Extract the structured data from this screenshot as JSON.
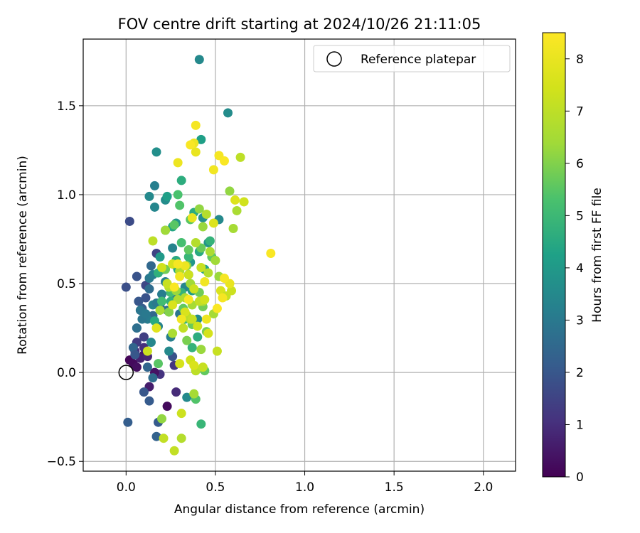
{
  "chart_data": {
    "type": "scatter",
    "title": "FOV centre drift starting at 2024/10/26 21:11:05",
    "xlabel": "Angular distance from reference (arcmin)",
    "ylabel": "Rotation from reference (arcmin)",
    "xlim": [
      -0.24,
      2.18
    ],
    "ylim": [
      -0.555,
      1.875
    ],
    "xticks": [
      0.0,
      0.5,
      1.0,
      1.5,
      2.0
    ],
    "xtick_labels": [
      "0.0",
      "0.5",
      "1.0",
      "1.5",
      "2.0"
    ],
    "yticks": [
      -0.5,
      0.0,
      0.5,
      1.0,
      1.5
    ],
    "ytick_labels": [
      "−0.5",
      "0.0",
      "0.5",
      "1.0",
      "1.5"
    ],
    "grid": true,
    "legend": {
      "position": "top-right",
      "entries": [
        {
          "label": "Reference platepar",
          "marker": "open-circle"
        }
      ]
    },
    "reference_point": {
      "x": 0.0,
      "y": 0.0
    },
    "colorbar": {
      "label": "Hours from first FF file",
      "range": [
        0,
        8.5
      ],
      "ticks": [
        0,
        1,
        2,
        3,
        4,
        5,
        6,
        7,
        8
      ],
      "tick_labels": [
        "0",
        "1",
        "2",
        "3",
        "4",
        "5",
        "6",
        "7",
        "8"
      ],
      "colormap": "viridis"
    },
    "series": [
      {
        "x": [
          0.02,
          0.04,
          0.06,
          0.1,
          0.13,
          0.08,
          0.12,
          0.28,
          0.05,
          0.19,
          0.27,
          0.23,
          0.16,
          0.1,
          0.06,
          0.1
        ],
        "y": [
          0.07,
          0.05,
          0.03,
          0.1,
          -0.08,
          0.08,
          0.09,
          -0.11,
          0.12,
          -0.01,
          0.04,
          -0.19,
          0.0,
          0.14,
          0.17,
          0.2
        ],
        "hours": [
          0.1,
          0.2,
          0.3,
          0.5,
          0.6,
          0.7,
          0.8,
          0.9,
          1.0,
          1.1,
          1.2,
          0.2,
          0.4,
          1.0,
          1.3,
          1.4
        ]
      },
      {
        "x": [
          0.02,
          0.06,
          0.11,
          0.17,
          0.0,
          0.01,
          0.1,
          0.13,
          0.17,
          0.18,
          0.26,
          0.07,
          0.09,
          0.15,
          0.12,
          0.15,
          0.06,
          0.08,
          0.11,
          0.04,
          0.05,
          0.13,
          0.19,
          0.25,
          0.14
        ],
        "y": [
          0.85,
          0.54,
          0.49,
          0.67,
          0.48,
          -0.28,
          -0.11,
          -0.16,
          -0.36,
          -0.28,
          0.09,
          0.4,
          0.36,
          0.32,
          0.03,
          -0.03,
          0.25,
          0.35,
          0.42,
          0.14,
          0.1,
          0.47,
          0.37,
          0.45,
          0.6
        ],
        "hours": [
          1.7,
          1.9,
          1.6,
          1.5,
          1.8,
          2.2,
          2.0,
          2.1,
          2.3,
          2.1,
          1.9,
          2.0,
          2.2,
          2.5,
          2.4,
          2.6,
          2.3,
          2.1,
          1.9,
          2.4,
          2.0,
          2.6,
          2.2,
          1.8,
          2.5
        ]
      },
      {
        "x": [
          0.41,
          0.57,
          0.17,
          0.13,
          0.16,
          0.16,
          0.22,
          0.28,
          0.26,
          0.35,
          0.21,
          0.22,
          0.23,
          0.27,
          0.13,
          0.15,
          0.34,
          0.06,
          0.08,
          0.12,
          0.14,
          0.17,
          0.25,
          0.3,
          0.4,
          0.33,
          0.2,
          0.18,
          0.24,
          0.36,
          0.43,
          0.52,
          0.46,
          0.19,
          0.15,
          0.28,
          0.37,
          0.09,
          0.11
        ],
        "y": [
          1.76,
          1.46,
          1.24,
          0.99,
          1.05,
          0.93,
          0.97,
          0.84,
          0.7,
          0.55,
          0.58,
          0.51,
          0.35,
          0.44,
          0.53,
          0.38,
          -0.14,
          0.25,
          0.35,
          0.3,
          0.17,
          0.39,
          0.2,
          0.33,
          0.3,
          0.48,
          0.44,
          0.26,
          0.12,
          0.62,
          0.87,
          0.86,
          0.73,
          0.65,
          0.55,
          0.6,
          0.46,
          0.3,
          0.33
        ],
        "hours": [
          3.5,
          3.6,
          3.7,
          3.5,
          3.2,
          3.4,
          3.6,
          3.8,
          3.3,
          3.1,
          3.0,
          3.2,
          2.8,
          2.9,
          3.0,
          3.3,
          3.5,
          2.7,
          2.9,
          3.1,
          3.4,
          3.0,
          3.2,
          2.9,
          3.6,
          3.4,
          3.1,
          3.3,
          3.5,
          3.9,
          3.7,
          3.5,
          3.8,
          4.0,
          3.2,
          3.6,
          4.1,
          2.9,
          3.0
        ]
      },
      {
        "x": [
          0.42,
          0.31,
          0.22,
          0.41,
          0.29,
          0.31,
          0.25,
          0.35,
          0.33,
          0.4,
          0.44,
          0.28,
          0.47,
          0.2,
          0.18,
          0.26,
          0.38,
          0.23,
          0.42,
          0.31,
          0.16,
          0.37
        ],
        "y": [
          1.31,
          1.08,
          0.8,
          0.68,
          0.58,
          0.45,
          0.4,
          0.65,
          0.3,
          0.2,
          0.58,
          0.63,
          0.74,
          0.4,
          0.56,
          0.82,
          0.9,
          0.99,
          -0.29,
          0.73,
          0.29,
          0.14
        ],
        "hours": [
          4.2,
          4.6,
          4.3,
          4.5,
          4.4,
          4.8,
          4.7,
          4.9,
          5.0,
          4.6,
          4.3,
          4.5,
          4.8,
          5.1,
          4.7,
          4.4,
          4.6,
          4.2,
          4.9,
          5.2,
          4.5,
          4.8
        ]
      },
      {
        "x": [
          0.39,
          0.44,
          0.29,
          0.36,
          0.42,
          0.25,
          0.32,
          0.22,
          0.18,
          0.34,
          0.3,
          0.48,
          0.41,
          0.37,
          0.27,
          0.24,
          0.45,
          0.35,
          0.39,
          0.43
        ],
        "y": [
          -0.15,
          0.01,
          1.0,
          0.86,
          0.7,
          0.45,
          0.36,
          0.58,
          0.05,
          0.18,
          0.94,
          0.65,
          0.45,
          0.27,
          0.83,
          0.34,
          0.23,
          0.69,
          0.01,
          0.37
        ],
        "hours": [
          5.4,
          5.6,
          5.3,
          5.5,
          5.7,
          5.2,
          5.6,
          5.8,
          5.5,
          5.9,
          5.4,
          5.6,
          5.8,
          5.7,
          5.5,
          6.0,
          5.9,
          5.6,
          5.4,
          5.8
        ]
      },
      {
        "x": [
          0.58,
          0.6,
          0.43,
          0.47,
          0.5,
          0.39,
          0.34,
          0.29,
          0.36,
          0.42,
          0.38,
          0.31,
          0.26,
          0.2,
          0.24,
          0.36,
          0.43,
          0.49,
          0.52,
          0.62,
          0.45,
          0.41,
          0.3,
          0.34,
          0.22,
          0.19,
          0.28,
          0.37,
          0.46,
          0.33
        ],
        "y": [
          1.02,
          0.81,
          0.82,
          0.68,
          0.63,
          0.73,
          0.6,
          0.41,
          0.3,
          0.13,
          -0.12,
          -0.37,
          0.22,
          -0.26,
          0.48,
          0.5,
          0.4,
          0.33,
          0.54,
          0.91,
          0.89,
          0.92,
          0.57,
          0.32,
          0.8,
          0.35,
          0.46,
          0.38,
          0.56,
          0.42
        ],
        "hours": [
          6.2,
          6.5,
          6.3,
          6.6,
          6.4,
          6.8,
          6.1,
          6.7,
          6.9,
          6.3,
          6.5,
          6.8,
          6.6,
          6.2,
          6.9,
          6.4,
          6.7,
          6.5,
          6.3,
          6.6,
          6.8,
          6.2,
          6.7,
          6.9,
          6.4,
          6.6,
          6.3,
          6.5,
          6.8,
          6.7
        ]
      },
      {
        "x": [
          0.15,
          0.23,
          0.2,
          0.41,
          0.38,
          0.33,
          0.51,
          0.46,
          0.39,
          0.36,
          0.27,
          0.31,
          0.53,
          0.56,
          0.64,
          0.66,
          0.61,
          0.42,
          0.26,
          0.35,
          0.21,
          0.38,
          0.4,
          0.43,
          0.17,
          0.12,
          0.3,
          0.49,
          0.32,
          0.44,
          0.26,
          0.37,
          0.59
        ],
        "y": [
          0.74,
          0.5,
          0.59,
          0.4,
          0.47,
          0.34,
          0.12,
          0.22,
          0.01,
          0.07,
          -0.44,
          -0.23,
          0.46,
          0.43,
          1.21,
          0.96,
          0.97,
          0.59,
          0.61,
          0.55,
          -0.37,
          0.04,
          0.26,
          0.03,
          0.25,
          0.12,
          0.05,
          0.84,
          0.25,
          0.41,
          0.38,
          0.3,
          0.46
        ],
        "hours": [
          7.0,
          7.2,
          7.4,
          7.1,
          7.3,
          7.6,
          7.2,
          7.5,
          7.0,
          7.4,
          7.1,
          7.3,
          7.6,
          7.2,
          7.0,
          7.4,
          7.7,
          7.2,
          7.5,
          7.3,
          7.1,
          7.6,
          7.4,
          7.2,
          7.8,
          7.3,
          7.5,
          7.7,
          7.1,
          7.4,
          7.6,
          7.2,
          7.3
        ]
      },
      {
        "x": [
          0.39,
          0.38,
          0.36,
          0.39,
          0.49,
          0.52,
          0.55,
          0.29,
          0.81,
          0.44,
          0.54,
          0.58,
          0.51,
          0.3,
          0.33,
          0.55,
          0.37,
          0.27,
          0.31,
          0.29,
          0.45,
          0.35
        ],
        "y": [
          1.39,
          1.29,
          1.28,
          1.24,
          1.14,
          1.22,
          1.19,
          1.18,
          0.67,
          0.51,
          0.42,
          0.5,
          0.36,
          0.54,
          0.6,
          0.53,
          0.87,
          0.48,
          0.3,
          0.61,
          0.3,
          0.41
        ],
        "hours": [
          8.3,
          8.1,
          8.4,
          8.0,
          8.2,
          8.3,
          8.4,
          8.1,
          8.4,
          8.2,
          8.3,
          8.0,
          8.4,
          8.2,
          8.1,
          8.3,
          8.0,
          8.4,
          8.2,
          8.3,
          8.1,
          8.4
        ]
      }
    ]
  }
}
